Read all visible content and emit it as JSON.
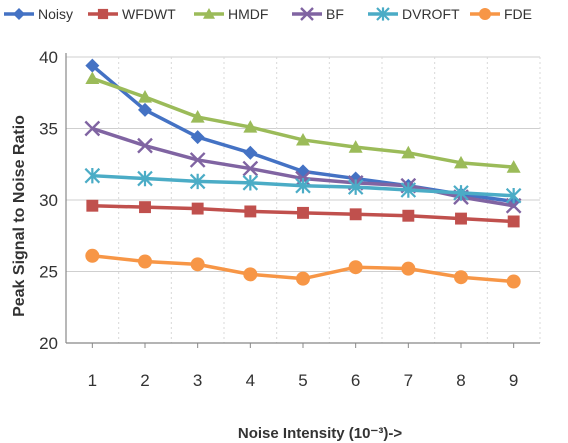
{
  "chart_data": {
    "type": "line",
    "xlabel": "Noise Intensity (10⁻³)->",
    "ylabel": "Peak Signal to Noise Ratio",
    "x": [
      1,
      2,
      3,
      4,
      5,
      6,
      7,
      8,
      9
    ],
    "ylim": [
      20,
      40
    ],
    "yticks": [
      20,
      25,
      30,
      35,
      40
    ],
    "grid": true,
    "legend": "top",
    "series": [
      {
        "name": "Noisy",
        "color": "#4472c4",
        "marker": "diamond",
        "values": [
          39.4,
          36.3,
          34.4,
          33.3,
          32.0,
          31.5,
          31.0,
          30.4,
          29.9
        ]
      },
      {
        "name": "WFDWT",
        "color": "#c0504d",
        "marker": "square",
        "values": [
          29.6,
          29.5,
          29.4,
          29.2,
          29.1,
          29.0,
          28.9,
          28.7,
          28.5
        ]
      },
      {
        "name": "HMDF",
        "color": "#9bbb59",
        "marker": "triangle",
        "values": [
          38.5,
          37.2,
          35.8,
          35.1,
          34.2,
          33.7,
          33.3,
          32.6,
          32.3
        ]
      },
      {
        "name": "BF",
        "color": "#8064a2",
        "marker": "x",
        "values": [
          35.0,
          33.8,
          32.8,
          32.2,
          31.5,
          31.2,
          31.0,
          30.2,
          29.6
        ]
      },
      {
        "name": "DVROFT",
        "color": "#4bacc6",
        "marker": "star",
        "values": [
          31.7,
          31.5,
          31.3,
          31.2,
          31.0,
          30.9,
          30.7,
          30.5,
          30.3
        ]
      },
      {
        "name": "FDE",
        "color": "#f79646",
        "marker": "circle",
        "values": [
          26.1,
          25.7,
          25.5,
          24.8,
          24.5,
          25.3,
          25.2,
          24.6,
          24.3
        ]
      }
    ]
  }
}
